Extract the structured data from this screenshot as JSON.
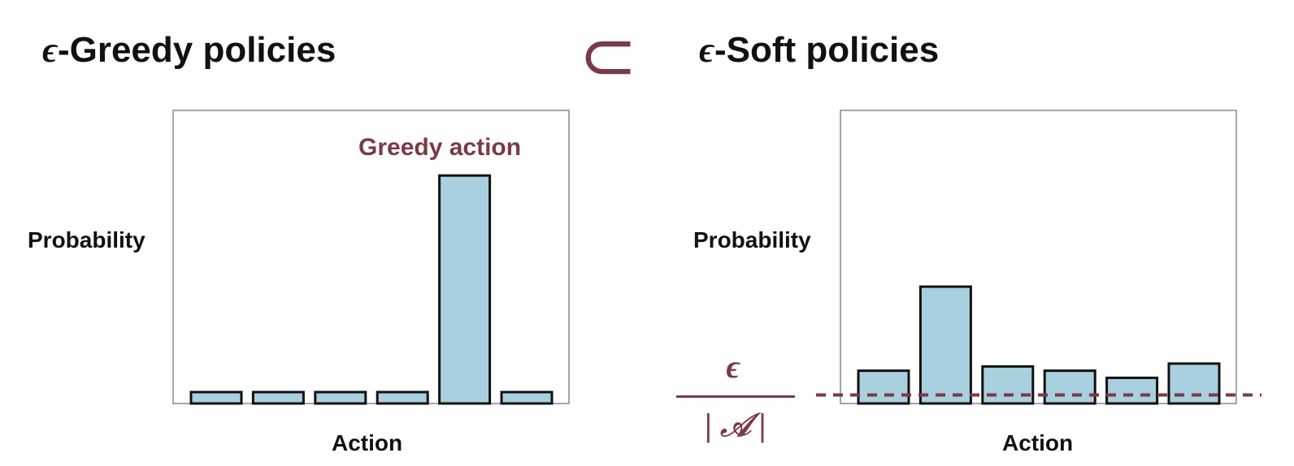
{
  "titles": {
    "left_symbol": "ϵ",
    "left_text": "-Greedy policies",
    "relation_symbol": "⊂",
    "right_symbol": "ϵ",
    "right_text": "-Soft policies"
  },
  "colors": {
    "bar_fill": "#a8d0de",
    "bar_stroke": "#111111",
    "accent": "#7a3a48",
    "frame": "#888888"
  },
  "chart_data": [
    {
      "type": "bar",
      "title": "ϵ-Greedy policies",
      "xlabel": "Action",
      "ylabel": "Probability",
      "categories": [
        "",
        "",
        "",
        "",
        "",
        ""
      ],
      "values": [
        0.04,
        0.04,
        0.04,
        0.04,
        0.8,
        0.04
      ],
      "ylim": [
        0,
        1
      ],
      "annotation": "Greedy action",
      "annotated_index": 4,
      "grid": false
    },
    {
      "type": "bar",
      "title": "ϵ-Soft policies",
      "xlabel": "Action",
      "ylabel": "Probability",
      "categories": [
        "",
        "",
        "",
        "",
        "",
        ""
      ],
      "values": [
        0.115,
        0.41,
        0.13,
        0.115,
        0.09,
        0.14
      ],
      "ylim": [
        0,
        1
      ],
      "threshold_line": {
        "numerator": "ϵ",
        "denominator": "| 𝒜 |",
        "value": 0.03,
        "style": "dashed"
      },
      "grid": false
    }
  ]
}
